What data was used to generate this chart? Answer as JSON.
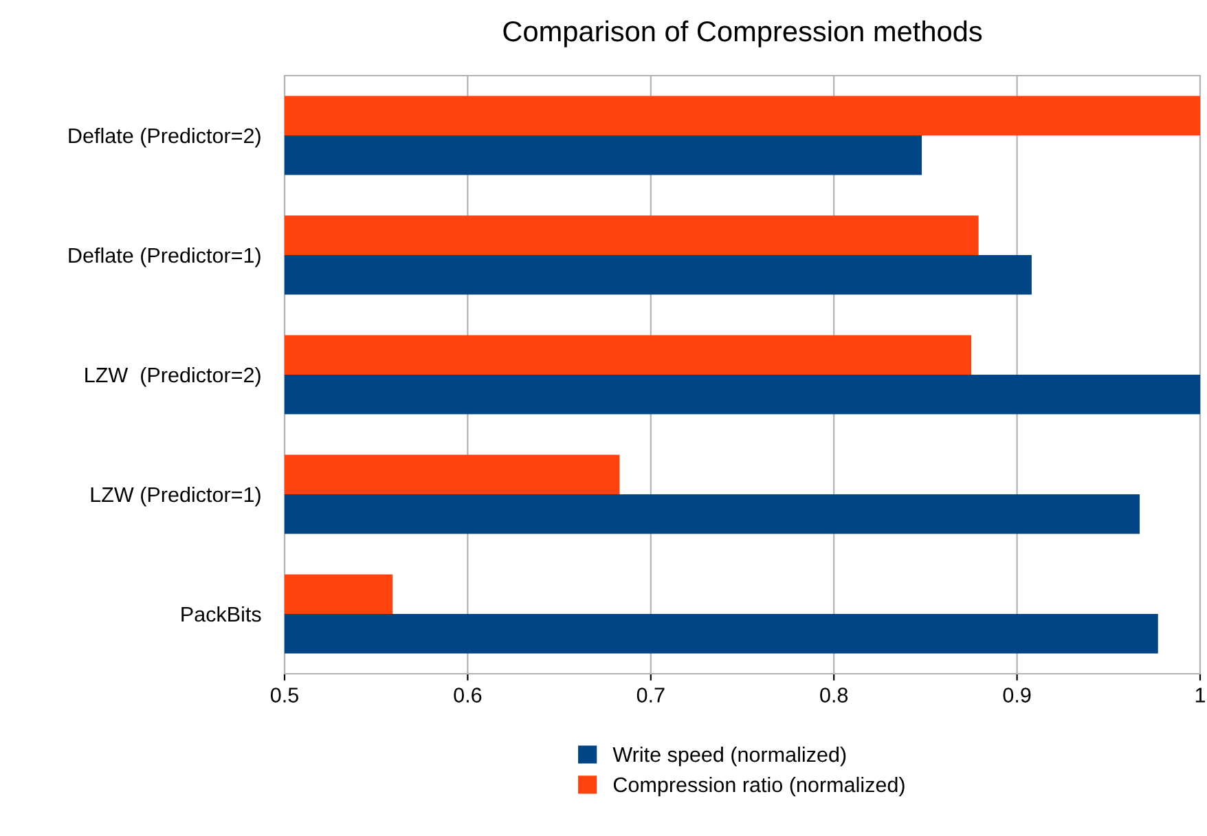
{
  "chart_data": {
    "type": "bar",
    "orientation": "horizontal",
    "title": "Comparison of Compression methods",
    "categories": [
      "Deflate (Predictor=2)",
      "Deflate (Predictor=1)",
      "LZW  (Predictor=2)",
      "LZW (Predictor=1)",
      "PackBits"
    ],
    "series": [
      {
        "name": "Write speed (normalized)",
        "color": "#004586",
        "values": [
          0.848,
          0.908,
          1.0,
          0.967,
          0.977
        ]
      },
      {
        "name": "Compression ratio (normalized)",
        "color": "#ff420e",
        "values": [
          1.0,
          0.879,
          0.875,
          0.683,
          0.559
        ]
      }
    ],
    "xlim": [
      0.5,
      1
    ],
    "xticks": [
      0.5,
      0.6,
      0.7,
      0.8,
      0.9,
      1
    ],
    "grid": "x",
    "legend": "bottom"
  }
}
